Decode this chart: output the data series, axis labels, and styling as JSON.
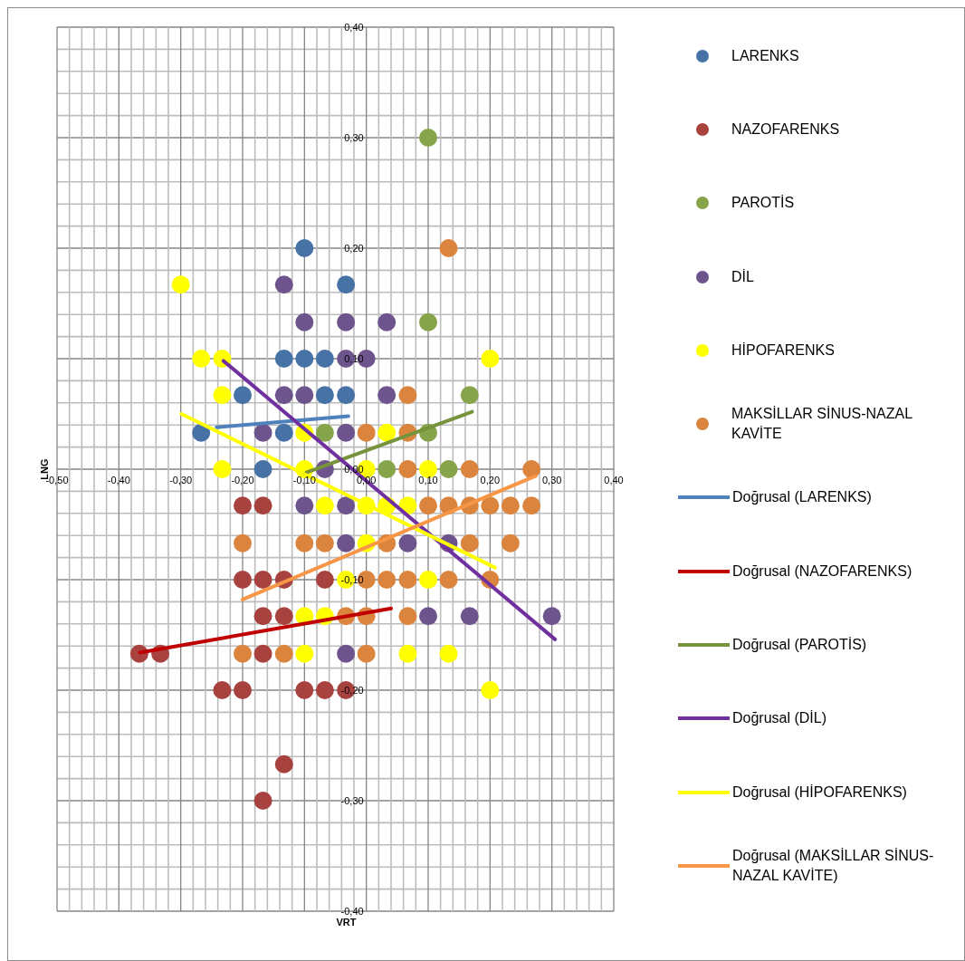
{
  "chart_data": {
    "type": "scatter",
    "xlabel": "VRT",
    "ylabel": "LNG",
    "marker": "circle",
    "grid": true,
    "legend": "right",
    "xlim": [
      -0.5,
      0.4
    ],
    "ylim": [
      -0.4,
      0.4
    ],
    "xticks": [
      {
        "value": -0.5,
        "label": "-0,50"
      },
      {
        "value": -0.48,
        "label": null
      },
      {
        "value": -0.46,
        "label": null
      },
      {
        "value": -0.44,
        "label": null
      },
      {
        "value": -0.42,
        "label": null
      },
      {
        "value": -0.4,
        "label": "-0,40"
      },
      {
        "value": -0.38,
        "label": null
      },
      {
        "value": -0.36,
        "label": null
      },
      {
        "value": -0.34,
        "label": null
      },
      {
        "value": -0.32,
        "label": null
      },
      {
        "value": -0.3,
        "label": "-0,30"
      },
      {
        "value": -0.28,
        "label": null
      },
      {
        "value": -0.26,
        "label": null
      },
      {
        "value": -0.24,
        "label": null
      },
      {
        "value": -0.22,
        "label": null
      },
      {
        "value": -0.2,
        "label": "-0,20"
      },
      {
        "value": -0.18,
        "label": null
      },
      {
        "value": -0.16,
        "label": null
      },
      {
        "value": -0.14,
        "label": null
      },
      {
        "value": -0.12,
        "label": null
      },
      {
        "value": -0.1,
        "label": "-0,10"
      },
      {
        "value": -0.08,
        "label": null
      },
      {
        "value": -0.06,
        "label": null
      },
      {
        "value": -0.04,
        "label": null
      },
      {
        "value": -0.02,
        "label": null
      },
      {
        "value": 0,
        "label": "0,00"
      },
      {
        "value": 0.02,
        "label": null
      },
      {
        "value": 0.04,
        "label": null
      },
      {
        "value": 0.06,
        "label": null
      },
      {
        "value": 0.08,
        "label": null
      },
      {
        "value": 0.1,
        "label": "0,10"
      },
      {
        "value": 0.12,
        "label": null
      },
      {
        "value": 0.14,
        "label": null
      },
      {
        "value": 0.16,
        "label": null
      },
      {
        "value": 0.18,
        "label": null
      },
      {
        "value": 0.2,
        "label": "0,20"
      },
      {
        "value": 0.22,
        "label": null
      },
      {
        "value": 0.24,
        "label": null
      },
      {
        "value": 0.26,
        "label": null
      },
      {
        "value": 0.28,
        "label": null
      },
      {
        "value": 0.3,
        "label": "0,30"
      },
      {
        "value": 0.32,
        "label": null
      },
      {
        "value": 0.34,
        "label": null
      },
      {
        "value": 0.36,
        "label": null
      },
      {
        "value": 0.38,
        "label": null
      },
      {
        "value": 0.4,
        "label": "0,40"
      }
    ],
    "yticks": [
      {
        "value": -0.4,
        "label": "-0,40"
      },
      {
        "value": -0.38,
        "label": null
      },
      {
        "value": -0.36,
        "label": null
      },
      {
        "value": -0.34,
        "label": null
      },
      {
        "value": -0.32,
        "label": null
      },
      {
        "value": -0.3,
        "label": "-0,30"
      },
      {
        "value": -0.28,
        "label": null
      },
      {
        "value": -0.26,
        "label": null
      },
      {
        "value": -0.24,
        "label": null
      },
      {
        "value": -0.22,
        "label": null
      },
      {
        "value": -0.2,
        "label": "-0,20"
      },
      {
        "value": -0.18,
        "label": null
      },
      {
        "value": -0.16,
        "label": null
      },
      {
        "value": -0.14,
        "label": null
      },
      {
        "value": -0.12,
        "label": null
      },
      {
        "value": -0.1,
        "label": "-0,10"
      },
      {
        "value": -0.08,
        "label": null
      },
      {
        "value": -0.06,
        "label": null
      },
      {
        "value": -0.04,
        "label": null
      },
      {
        "value": -0.02,
        "label": null
      },
      {
        "value": 0,
        "label": "0,00"
      },
      {
        "value": 0.02,
        "label": null
      },
      {
        "value": 0.04,
        "label": null
      },
      {
        "value": 0.06,
        "label": null
      },
      {
        "value": 0.08,
        "label": null
      },
      {
        "value": 0.1,
        "label": "0,10"
      },
      {
        "value": 0.12,
        "label": null
      },
      {
        "value": 0.14,
        "label": null
      },
      {
        "value": 0.16,
        "label": null
      },
      {
        "value": 0.18,
        "label": null
      },
      {
        "value": 0.2,
        "label": "0,20"
      },
      {
        "value": 0.22,
        "label": null
      },
      {
        "value": 0.24,
        "label": null
      },
      {
        "value": 0.26,
        "label": null
      },
      {
        "value": 0.28,
        "label": null
      },
      {
        "value": 0.3,
        "label": "0,30"
      },
      {
        "value": 0.32,
        "label": null
      },
      {
        "value": 0.34,
        "label": null
      },
      {
        "value": 0.36,
        "label": null
      },
      {
        "value": 0.38,
        "label": null
      },
      {
        "value": 0.4,
        "label": "0,40"
      }
    ],
    "series": [
      {
        "name": "LARENKS",
        "color": "#4672a6",
        "x": [
          -0.1,
          -0.033,
          -0.133,
          -0.1,
          -0.067,
          -0.2,
          -0.067,
          -0.033,
          -0.267,
          -0.133,
          -0.167
        ],
        "values": [
          0.2,
          0.167,
          0.1,
          0.1,
          0.1,
          0.067,
          0.067,
          0.067,
          0.033,
          0.033,
          0
        ]
      },
      {
        "name": "NAZOFARENKS",
        "color": "#a8423f",
        "x": [
          -0.2,
          -0.167,
          -0.2,
          -0.167,
          -0.133,
          -0.067,
          -0.167,
          -0.133,
          -0.367,
          -0.333,
          -0.167,
          -0.233,
          -0.2,
          -0.1,
          -0.067,
          -0.033,
          -0.133,
          -0.167
        ],
        "values": [
          -0.033,
          -0.033,
          -0.1,
          -0.1,
          -0.1,
          -0.1,
          -0.133,
          -0.133,
          -0.167,
          -0.167,
          -0.167,
          -0.2,
          -0.2,
          -0.2,
          -0.2,
          -0.2,
          -0.267,
          -0.3
        ]
      },
      {
        "name": "PAROTİS",
        "color": "#86a44a",
        "x": [
          0.1,
          0.1,
          0.167,
          -0.067,
          0.1,
          0.033,
          0.133
        ],
        "values": [
          0.3,
          0.133,
          0.067,
          0.033,
          0.033,
          0,
          0
        ]
      },
      {
        "name": "DİL",
        "color": "#6e548d",
        "x": [
          -0.133,
          -0.1,
          -0.033,
          0.033,
          -0.033,
          0,
          -0.133,
          -0.1,
          0.033,
          -0.167,
          -0.033,
          -0.067,
          -0.1,
          -0.033,
          -0.033,
          0.067,
          0.133,
          0.1,
          0.167,
          0.3,
          -0.033
        ],
        "values": [
          0.167,
          0.133,
          0.133,
          0.133,
          0.1,
          0.1,
          0.067,
          0.067,
          0.067,
          0.033,
          0.033,
          0,
          -0.033,
          -0.033,
          -0.067,
          -0.067,
          -0.067,
          -0.133,
          -0.133,
          -0.133,
          -0.167
        ]
      },
      {
        "name": "HİPOFARENKS",
        "color": "#ffff00",
        "x": [
          -0.3,
          -0.267,
          -0.233,
          0.2,
          -0.233,
          -0.1,
          0.033,
          -0.233,
          -0.1,
          0,
          0.1,
          -0.067,
          0,
          0.033,
          0.067,
          0,
          -0.033,
          0.1,
          -0.1,
          -0.067,
          -0.1,
          0.067,
          0.133,
          0.2
        ],
        "values": [
          0.167,
          0.1,
          0.1,
          0.1,
          0.067,
          0.033,
          0.033,
          0,
          0,
          0,
          0,
          -0.033,
          -0.033,
          -0.033,
          -0.033,
          -0.067,
          -0.1,
          -0.1,
          -0.133,
          -0.133,
          -0.167,
          -0.167,
          -0.167,
          -0.2
        ]
      },
      {
        "name": "MAKSİLLAR SİNUS-NAZAL KAVİTE",
        "color": "#db843d",
        "x": [
          0.133,
          0.067,
          0,
          0.067,
          0.067,
          0.167,
          0.267,
          0.1,
          0.133,
          0.167,
          0.2,
          0.233,
          0.267,
          -0.2,
          -0.1,
          -0.067,
          0.033,
          0.167,
          0.233,
          0,
          0.033,
          0.067,
          0.133,
          0.2,
          -0.033,
          0,
          0.067,
          -0.2,
          -0.133,
          0
        ],
        "values": [
          0.2,
          0.067,
          0.033,
          0.033,
          0,
          0,
          0,
          -0.033,
          -0.033,
          -0.033,
          -0.033,
          -0.033,
          -0.033,
          -0.067,
          -0.067,
          -0.067,
          -0.067,
          -0.067,
          -0.067,
          -0.1,
          -0.1,
          -0.1,
          -0.1,
          -0.1,
          -0.133,
          -0.133,
          -0.133,
          -0.167,
          -0.167,
          -0.167
        ]
      },
      {
        "name": "Doğrusal (LARENKS)",
        "type": "line",
        "marker": "none",
        "color": "#4f81bd",
        "x": [
          -0.242,
          -0.029
        ],
        "values": [
          0.038,
          0.048
        ]
      },
      {
        "name": "Doğrusal (NAZOFARENKS)",
        "type": "line",
        "marker": "none",
        "color": "#c00000",
        "x": [
          -0.366,
          0.04
        ],
        "values": [
          -0.166,
          -0.126
        ]
      },
      {
        "name": "Doğrusal (PAROTİS)",
        "type": "line",
        "marker": "none",
        "color": "#77933c",
        "x": [
          -0.097,
          0.171
        ],
        "values": [
          -0.003,
          0.052
        ]
      },
      {
        "name": "Doğrusal (DİL)",
        "type": "line",
        "marker": "none",
        "color": "#7030a0",
        "x": [
          -0.231,
          0.305
        ],
        "values": [
          0.098,
          -0.154
        ]
      },
      {
        "name": "Doğrusal (HİPOFARENKS)",
        "type": "line",
        "marker": "none",
        "color": "#ffff00",
        "x": [
          -0.299,
          0.208
        ],
        "values": [
          0.05,
          -0.089
        ]
      },
      {
        "name": "Doğrusal (MAKSİLLAR SİNUS-NAZAL KAVİTE)",
        "type": "line",
        "marker": "none",
        "color": "#f79646",
        "x": [
          -0.2,
          0.274
        ],
        "values": [
          -0.118,
          -0.006
        ]
      }
    ]
  }
}
